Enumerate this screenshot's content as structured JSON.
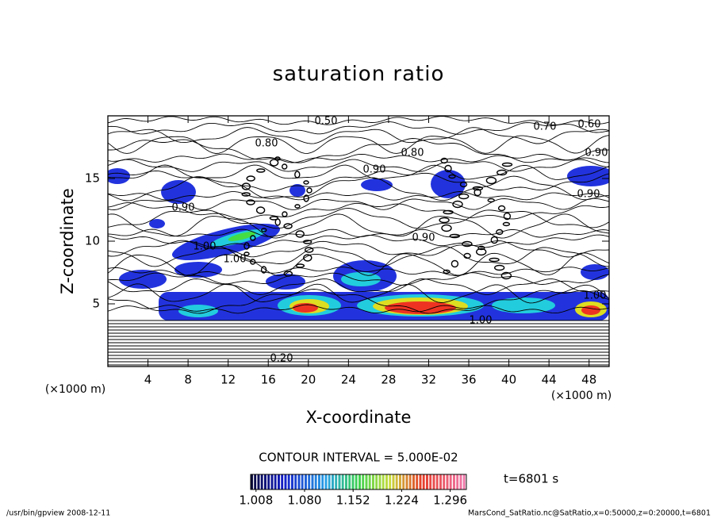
{
  "chart_data": {
    "type": "contour",
    "title": "saturation ratio",
    "x_label": "X-coordinate",
    "y_label": "Z-coordinate",
    "x_unit": "(×1000 m)",
    "y_unit": "(×1000 m)",
    "xlim": [
      0,
      50
    ],
    "ylim": [
      0,
      20
    ],
    "xticks": [
      4,
      8,
      12,
      16,
      20,
      24,
      28,
      32,
      36,
      40,
      44,
      48
    ],
    "yticks": [
      5,
      10,
      15
    ],
    "contour_labels": [
      "0.50",
      "0.70",
      "0.60",
      "0.80",
      "0.80",
      "0.90",
      "0.90",
      "0.90",
      "0.90",
      "0.90",
      "1.00",
      "1.00",
      "1.00",
      "1.00",
      "0.20"
    ],
    "contour_interval": "CONTOUR INTERVAL = 5.000E-02",
    "time_label": "t=6801 s",
    "colorbar": {
      "clim": [
        1.0,
        1.32
      ],
      "ticks": [
        1.008,
        {
          "value": 1.08,
          "label": "1.080"
        },
        1.152,
        1.224,
        1.296
      ]
    },
    "footer_left": "/usr/bin/gpview   2008-12-11",
    "footer_right": "MarsCond_SatRatio.nc@SatRatio,x=0:50000,z=0:20000,t=6801"
  }
}
